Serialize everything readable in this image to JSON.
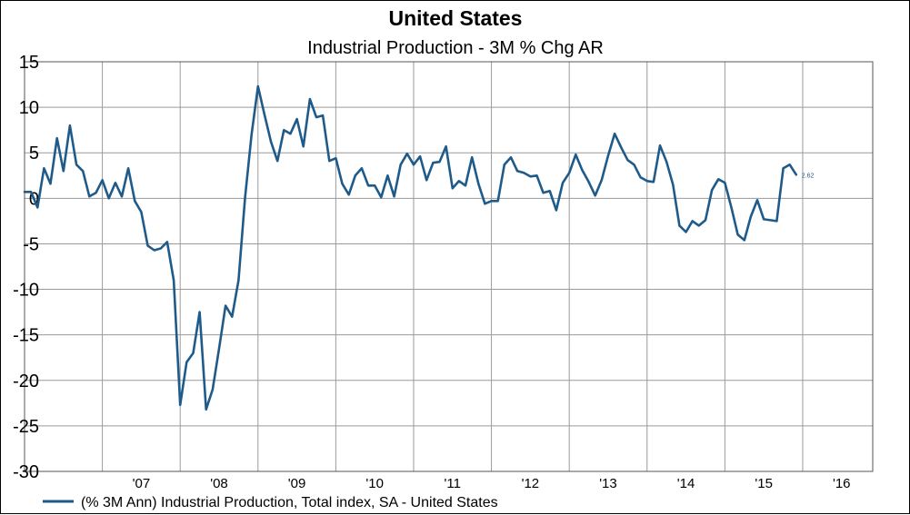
{
  "chart_data": {
    "type": "line",
    "title": "United States",
    "subtitle": "Industrial Production - 3M % Chg AR",
    "ylim": [
      -30,
      15
    ],
    "yticks": [
      15,
      10,
      5,
      0,
      -5,
      -10,
      -15,
      -20,
      -25,
      -30
    ],
    "ytick_labels": [
      "15",
      "10",
      "5",
      "0",
      "-5",
      "-10",
      "-15",
      "-20",
      "-25",
      "-30"
    ],
    "xlim": [
      2006.0,
      2016.9
    ],
    "x_tick_labels": [
      {
        "x": 2007.5,
        "label": "'07"
      },
      {
        "x": 2008.5,
        "label": "'08"
      },
      {
        "x": 2009.5,
        "label": "'09"
      },
      {
        "x": 2010.5,
        "label": "'10"
      },
      {
        "x": 2011.5,
        "label": "'11"
      },
      {
        "x": 2012.5,
        "label": "'12"
      },
      {
        "x": 2013.5,
        "label": "'13"
      },
      {
        "x": 2014.5,
        "label": "'14"
      },
      {
        "x": 2015.5,
        "label": "'15"
      },
      {
        "x": 2016.5,
        "label": "'16"
      }
    ],
    "year_boundaries": [
      2007,
      2008,
      2009,
      2010,
      2011,
      2012,
      2013,
      2014,
      2015,
      2016
    ],
    "grid": true,
    "legend_position": "bottom-left",
    "end_label": "2.62",
    "series": [
      {
        "name": "(% 3M Ann) Industrial Production, Total index, SA - United States",
        "color": "#1f5b8a",
        "start": "2006-01",
        "values": [
          0.7,
          0.7,
          -1.0,
          3.3,
          1.6,
          6.6,
          3.0,
          8.0,
          3.7,
          3.0,
          0.2,
          0.6,
          2.0,
          0.0,
          1.7,
          0.2,
          3.3,
          -0.3,
          -1.5,
          -5.2,
          -5.7,
          -5.5,
          -4.8,
          -9.0,
          -22.7,
          -18.0,
          -17.0,
          -12.5,
          -23.2,
          -21.0,
          -16.5,
          -11.8,
          -13.0,
          -9.0,
          0.0,
          7.0,
          12.3,
          9.2,
          6.2,
          4.1,
          7.5,
          7.1,
          8.7,
          5.7,
          10.9,
          8.9,
          9.1,
          4.1,
          4.4,
          1.6,
          0.4,
          2.5,
          3.3,
          1.4,
          1.4,
          0.1,
          2.5,
          0.2,
          3.7,
          4.9,
          3.7,
          4.6,
          2.0,
          3.9,
          4.0,
          5.7,
          1.1,
          1.9,
          1.4,
          4.5,
          1.6,
          -0.6,
          -0.3,
          -0.3,
          3.7,
          4.5,
          3.0,
          2.8,
          2.4,
          2.5,
          0.6,
          0.8,
          -1.3,
          1.7,
          2.8,
          4.8,
          3.1,
          1.8,
          0.3,
          2.0,
          4.7,
          7.1,
          5.6,
          4.2,
          3.7,
          2.3,
          1.9,
          1.8,
          5.8,
          4.0,
          1.5,
          -3.0,
          -3.7,
          -2.5,
          -3.0,
          -2.4,
          0.9,
          2.1,
          1.7,
          -1.0,
          -4.0,
          -4.6,
          -2.0,
          -0.2,
          -2.3,
          -2.4,
          -2.5,
          3.3,
          3.7,
          2.6
        ]
      }
    ]
  }
}
